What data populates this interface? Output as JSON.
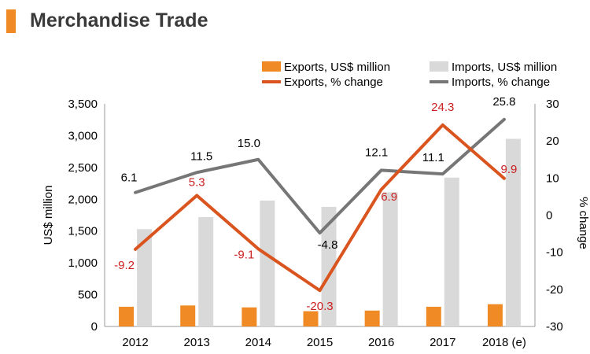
{
  "header": {
    "title": "Merchandise Trade"
  },
  "colors": {
    "exports_bar": "#f08a24",
    "imports_bar": "#d9d9d9",
    "exports_line": "#d9541e",
    "imports_line": "#767676",
    "exports_label": "#cc1f1f",
    "axis_text": "#000000"
  },
  "chart_data": {
    "type": "bar+line",
    "categories": [
      "2012",
      "2013",
      "2014",
      "2015",
      "2016",
      "2017",
      "2018 (e)"
    ],
    "left_axis": {
      "label": "US$ million",
      "ylim": [
        0,
        3500
      ],
      "ticks": [
        0,
        500,
        1000,
        1500,
        2000,
        2500,
        3000,
        3500
      ],
      "tick_labels": [
        "0",
        "500",
        "1,000",
        "1,500",
        "2,000",
        "2,500",
        "3,000",
        "3,500"
      ]
    },
    "right_axis": {
      "label": "% change",
      "ylim": [
        -30,
        30
      ],
      "ticks": [
        -30,
        -20,
        -10,
        0,
        10,
        20,
        30
      ],
      "tick_labels": [
        "-30",
        "-20",
        "-10",
        "0",
        "10",
        "20",
        "30"
      ]
    },
    "series": [
      {
        "name": "Exports, US$ million",
        "kind": "bar",
        "axis": "left",
        "values": [
          310,
          330,
          300,
          240,
          250,
          310,
          350
        ]
      },
      {
        "name": "Imports, US$ million",
        "kind": "bar",
        "axis": "left",
        "values": [
          1530,
          1720,
          1980,
          1880,
          2110,
          2340,
          2950
        ]
      },
      {
        "name": "Exports, % change",
        "kind": "line",
        "axis": "right",
        "values": [
          -9.2,
          5.3,
          -9.1,
          -20.3,
          6.9,
          24.3,
          9.9
        ],
        "labels": [
          "-9.2",
          "5.3",
          "-9.1",
          "-20.3",
          "6.9",
          "24.3",
          "9.9"
        ]
      },
      {
        "name": "Imports, % change",
        "kind": "line",
        "axis": "right",
        "values": [
          6.1,
          11.5,
          15.0,
          -4.8,
          12.1,
          11.1,
          25.8
        ],
        "labels": [
          "6.1",
          "11.5",
          "15.0",
          "-4.8",
          "12.1",
          "11.1",
          "25.8"
        ]
      }
    ],
    "legend_placement": "top",
    "grid": false
  }
}
